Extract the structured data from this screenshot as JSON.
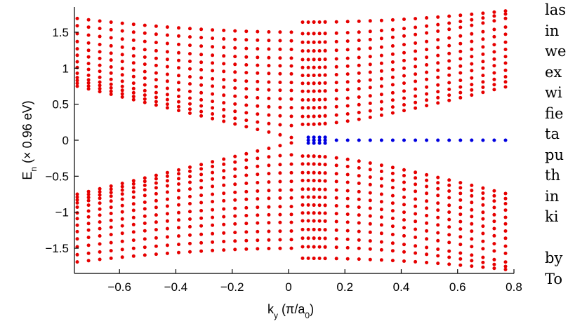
{
  "chart_data": {
    "type": "scatter",
    "title": "",
    "xlabel": "k_y (π/a_0)",
    "ylabel": "E_n (× 0.96 eV)",
    "xlim": [
      -0.76,
      0.8
    ],
    "ylim": [
      -1.85,
      1.85
    ],
    "xticks": [
      -0.6,
      -0.4,
      -0.2,
      0,
      0.2,
      0.4,
      0.6,
      0.8
    ],
    "yticks": [
      -1.5,
      -1,
      -0.5,
      0,
      0.5,
      1,
      1.5
    ],
    "x_tick_labels": [
      "−0.6",
      "−0.4",
      "−0.2",
      "0",
      "0.2",
      "0.4",
      "0.6",
      "0.8"
    ],
    "y_tick_labels": [
      "−1.5",
      "−1",
      "−0.5",
      "0",
      "0.5",
      "1",
      "1.5"
    ],
    "grid": false,
    "legend": "none",
    "k_sample": {
      "start": -0.75,
      "stop": 0.78,
      "step": 0.04,
      "extra": [
        0.07,
        0.09,
        0.11,
        0.13
      ]
    },
    "series": [
      {
        "color": "#e60000",
        "marker": "circle",
        "description_bands": "bulk bands symmetric in ±E; band edge E_min(k) and band top E_max(k)",
        "bands_left": [
          {
            "e_at_min_k": 0.75,
            "e_at_zero": 0.0
          },
          {
            "e_at_min_k": 0.79,
            "e_at_zero": 0.2
          },
          {
            "e_at_min_k": 0.83,
            "e_at_zero": 0.33
          },
          {
            "e_at_min_k": 0.87,
            "e_at_zero": 0.45
          },
          {
            "e_at_min_k": 0.93,
            "e_at_zero": 0.57
          },
          {
            "e_at_min_k": 1.01,
            "e_at_zero": 0.69
          },
          {
            "e_at_min_k": 1.09,
            "e_at_zero": 0.8
          },
          {
            "e_at_min_k": 1.18,
            "e_at_zero": 0.92
          },
          {
            "e_at_min_k": 1.27,
            "e_at_zero": 1.03
          },
          {
            "e_at_min_k": 1.37,
            "e_at_zero": 1.14
          },
          {
            "e_at_min_k": 1.48,
            "e_at_zero": 1.26
          },
          {
            "e_at_min_k": 1.59,
            "e_at_zero": 1.38
          },
          {
            "e_at_min_k": 1.69,
            "e_at_zero": 1.5
          }
        ],
        "bands_right": [
          {
            "e_at_gap": 0.22,
            "e_at_max_k": 0.75
          },
          {
            "e_at_gap": 0.33,
            "e_at_max_k": 0.82
          },
          {
            "e_at_gap": 0.45,
            "e_at_max_k": 0.89
          },
          {
            "e_at_gap": 0.56,
            "e_at_max_k": 0.98
          },
          {
            "e_at_gap": 0.68,
            "e_at_max_k": 1.08
          },
          {
            "e_at_gap": 0.79,
            "e_at_max_k": 1.17
          },
          {
            "e_at_gap": 0.9,
            "e_at_max_k": 1.27
          },
          {
            "e_at_gap": 1.01,
            "e_at_max_k": 1.37
          },
          {
            "e_at_gap": 1.12,
            "e_at_max_k": 1.48
          },
          {
            "e_at_gap": 1.24,
            "e_at_max_k": 1.58
          },
          {
            "e_at_gap": 1.36,
            "e_at_max_k": 1.7
          },
          {
            "e_at_gap": 1.48,
            "e_at_max_k": 1.76
          },
          {
            "e_at_gap": 1.64,
            "e_at_max_k": 1.8
          }
        ]
      },
      {
        "color": "#0000e0",
        "marker": "circle",
        "edge_state_k_range": [
          0.06,
          0.78
        ],
        "edge_state_e": [
          0.04,
          0.0,
          -0.04
        ]
      }
    ]
  },
  "side_text_lines": [
    "las",
    "in",
    "we",
    "ex",
    "wi",
    "fie",
    "ta",
    "pu",
    "th",
    "in",
    "ki",
    "",
    "by",
    "To"
  ]
}
